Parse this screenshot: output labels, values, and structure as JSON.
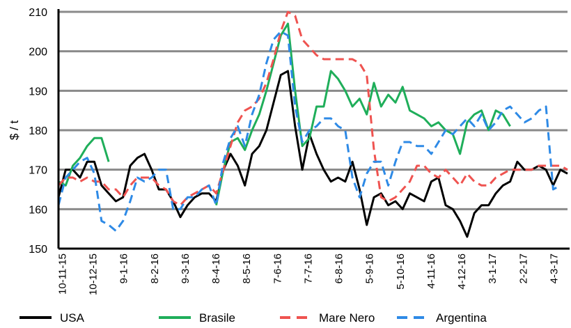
{
  "chart_data": {
    "type": "line",
    "title": "",
    "xlabel": "",
    "ylabel": "$ / t",
    "ylim": [
      150,
      210
    ],
    "yticks": [
      "150",
      "160",
      "170",
      "180",
      "190",
      "200",
      "210"
    ],
    "grid": true,
    "legend_position": "bottom",
    "xtick_labels": [
      "10-11-15",
      "10-12-15",
      "9-1-16",
      "8-2-16",
      "9-3-16",
      "8-4-16",
      "8-5-16",
      "7-6-16",
      "7-7-16",
      "6-8-16",
      "5-9-16",
      "5-10-16",
      "4-11-16",
      "4-12-16",
      "3-1-17",
      "2-2-17",
      "4-3-17"
    ],
    "xtick_dates": [
      "2015-11-10",
      "2015-12-10",
      "2016-01-09",
      "2016-02-08",
      "2016-03-09",
      "2016-04-08",
      "2016-05-08",
      "2016-06-07",
      "2016-07-07",
      "2016-08-06",
      "2016-09-05",
      "2016-10-05",
      "2016-11-04",
      "2016-12-04",
      "2017-01-03",
      "2017-02-02",
      "2017-03-04"
    ],
    "x": [
      "2015-11-07",
      "2015-11-14",
      "2015-11-21",
      "2015-11-28",
      "2015-12-05",
      "2015-12-12",
      "2015-12-19",
      "2015-12-26",
      "2016-01-02",
      "2016-01-09",
      "2016-01-16",
      "2016-01-23",
      "2016-01-30",
      "2016-02-06",
      "2016-02-13",
      "2016-02-20",
      "2016-02-27",
      "2016-03-05",
      "2016-03-12",
      "2016-03-19",
      "2016-03-26",
      "2016-04-02",
      "2016-04-09",
      "2016-04-16",
      "2016-04-23",
      "2016-04-30",
      "2016-05-07",
      "2016-05-14",
      "2016-05-21",
      "2016-05-28",
      "2016-06-04",
      "2016-06-11",
      "2016-06-18",
      "2016-06-25",
      "2016-07-02",
      "2016-07-09",
      "2016-07-16",
      "2016-07-23",
      "2016-07-30",
      "2016-08-06",
      "2016-08-13",
      "2016-08-20",
      "2016-08-27",
      "2016-09-03",
      "2016-09-10",
      "2016-09-17",
      "2016-09-24",
      "2016-10-01",
      "2016-10-08",
      "2016-10-15",
      "2016-10-22",
      "2016-10-29",
      "2016-11-05",
      "2016-11-12",
      "2016-11-19",
      "2016-11-26",
      "2016-12-03",
      "2016-12-10",
      "2016-12-17",
      "2016-12-24",
      "2016-12-31",
      "2017-01-07",
      "2017-01-14",
      "2017-01-21",
      "2017-01-28",
      "2017-02-04",
      "2017-02-11",
      "2017-02-18",
      "2017-02-25",
      "2017-03-04",
      "2017-03-11",
      "2017-03-18"
    ],
    "series": [
      {
        "name": "USA",
        "color": "#000000",
        "dash": "solid",
        "values": [
          163,
          170,
          170,
          168,
          172,
          172,
          166,
          164,
          162,
          163,
          171,
          173,
          174,
          170,
          165,
          165,
          162,
          158,
          161,
          163,
          164,
          164,
          162,
          170,
          174,
          171,
          166,
          174,
          176,
          180,
          187,
          194,
          195,
          181,
          170,
          179,
          174,
          170,
          167,
          168,
          167,
          172,
          165,
          156,
          163,
          164,
          161,
          162,
          160,
          164,
          163,
          162,
          167,
          168,
          161,
          160,
          157,
          153,
          159,
          161,
          161,
          164,
          166,
          167,
          172,
          170,
          170,
          171,
          170,
          166,
          170,
          169
        ]
      },
      {
        "name": "Brasile",
        "color": "#1fae5a",
        "dash": "solid",
        "values": [
          167,
          166,
          171,
          173,
          176,
          178,
          178,
          172,
          null,
          null,
          null,
          null,
          null,
          null,
          null,
          null,
          null,
          null,
          null,
          null,
          null,
          null,
          161,
          170,
          177,
          178,
          175,
          180,
          184,
          190,
          197,
          204,
          207,
          190,
          176,
          178,
          186,
          186,
          195,
          193,
          190,
          186,
          188,
          184,
          192,
          186,
          189,
          187,
          191,
          185,
          184,
          183,
          181,
          182,
          180,
          179,
          174,
          182,
          184,
          185,
          180,
          185,
          184,
          181,
          null,
          null,
          null,
          null,
          null,
          null,
          null,
          null
        ]
      },
      {
        "name": "Mare Nero",
        "color": "#ef5350",
        "dash": "dashed",
        "values": [
          166,
          168,
          168,
          167,
          168,
          167,
          167,
          165,
          165,
          163,
          166,
          168,
          168,
          168,
          166,
          165,
          162,
          161,
          163,
          164,
          165,
          166,
          164,
          170,
          176,
          182,
          185,
          186,
          188,
          192,
          198,
          205,
          210,
          209,
          203,
          201,
          199,
          198,
          198,
          198,
          198,
          198,
          197,
          194,
          175,
          163,
          162,
          163,
          165,
          167,
          171,
          171,
          169,
          168,
          170,
          168,
          166,
          169,
          167,
          166,
          166,
          168,
          169,
          170,
          170,
          170,
          170,
          171,
          171,
          171,
          171,
          170
        ]
      },
      {
        "name": "Argentina",
        "color": "#2e8ae6",
        "dash": "dashed",
        "values": [
          161,
          168,
          170,
          172,
          173,
          169,
          157,
          156,
          154.5,
          157,
          162,
          168,
          167,
          168,
          170,
          170,
          160,
          160,
          163,
          163,
          165,
          166,
          161,
          172,
          178,
          181,
          176,
          184,
          189,
          197,
          203,
          205,
          204,
          186,
          177,
          180,
          181,
          183,
          183,
          181,
          180,
          168,
          163,
          169,
          172,
          172,
          166,
          172,
          177,
          177,
          176,
          176,
          174,
          177,
          180,
          179,
          181,
          183,
          181,
          184,
          180,
          182,
          185,
          186,
          184,
          182,
          183,
          185,
          186,
          165,
          166,
          null
        ]
      }
    ]
  }
}
